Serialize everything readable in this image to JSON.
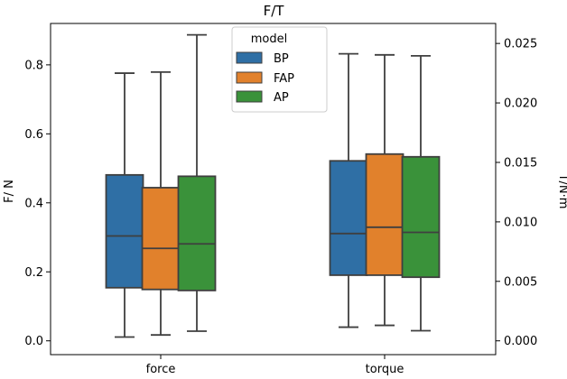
{
  "chart_data": {
    "type": "box",
    "title": "F/T",
    "categories": [
      "force",
      "torque"
    ],
    "left_axis": {
      "label": "F/ N",
      "ylim": [
        -0.04,
        0.92
      ],
      "ticks": [
        "0.0",
        "0.2",
        "0.4",
        "0.6",
        "0.8"
      ],
      "tick_values": [
        0.0,
        0.2,
        0.4,
        0.6,
        0.8
      ]
    },
    "right_axis": {
      "label": "T/N·m",
      "ylim": [
        -0.00116,
        0.02668
      ],
      "ticks": [
        "0.000",
        "0.005",
        "0.010",
        "0.015",
        "0.020",
        "0.025"
      ],
      "tick_values": [
        0.0,
        0.005,
        0.01,
        0.015,
        0.02,
        0.025
      ]
    },
    "legend": {
      "title": "model",
      "position": "top-center"
    },
    "series": [
      {
        "name": "BP",
        "color": "#2f6fa5",
        "force": {
          "whisker_low": 0.011,
          "q1": 0.154,
          "median": 0.304,
          "q3": 0.481,
          "whisker_high": 0.776
        },
        "torque": {
          "whisker_low": 0.00115,
          "q1": 0.00552,
          "median": 0.00902,
          "q3": 0.01513,
          "whisker_high": 0.02413
        }
      },
      {
        "name": "FAP",
        "color": "#e1812c",
        "force": {
          "whisker_low": 0.017,
          "q1": 0.149,
          "median": 0.268,
          "q3": 0.444,
          "whisker_high": 0.779
        },
        "torque": {
          "whisker_low": 0.0013,
          "q1": 0.00552,
          "median": 0.00955,
          "q3": 0.0157,
          "whisker_high": 0.02404
        }
      },
      {
        "name": "AP",
        "color": "#3a923a",
        "force": {
          "whisker_low": 0.028,
          "q1": 0.146,
          "median": 0.281,
          "q3": 0.477,
          "whisker_high": 0.887
        },
        "torque": {
          "whisker_low": 0.00085,
          "q1": 0.00535,
          "median": 0.00912,
          "q3": 0.01547,
          "whisker_high": 0.02396
        }
      }
    ]
  }
}
